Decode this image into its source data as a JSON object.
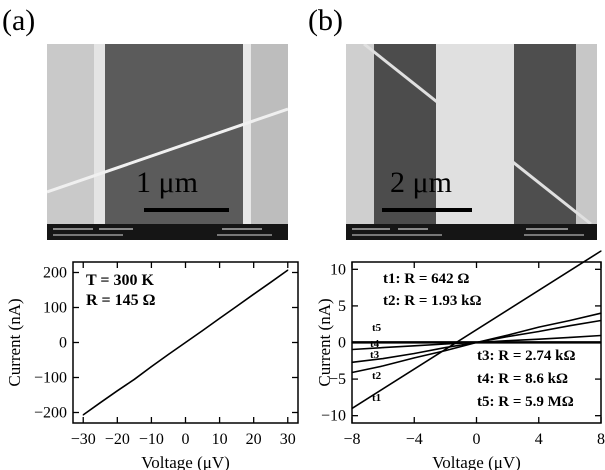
{
  "panels": [
    {
      "label": "(a)",
      "scale_bar": "1 μm"
    },
    {
      "label": "(b)",
      "scale_bar": "2 μm"
    }
  ],
  "chart_data": [
    {
      "type": "line",
      "xlabel": "Voltage (μV)",
      "ylabel": "Current (nA)",
      "xlim": [
        -33,
        33
      ],
      "ylim": [
        -230,
        230
      ],
      "xticks": [
        -30,
        -20,
        -10,
        0,
        10,
        20,
        30
      ],
      "yticks": [
        -200,
        -100,
        0,
        100,
        200
      ],
      "annotations": [
        "T = 300 K",
        "R = 145 Ω"
      ],
      "series": [
        {
          "x": [
            -30,
            -25,
            -20,
            -15,
            -10,
            -5,
            0,
            5,
            10,
            15,
            20,
            25,
            30
          ],
          "y": [
            -207,
            -172,
            -138,
            -105,
            -69,
            -34,
            0,
            34,
            69,
            103,
            138,
            172,
            207
          ]
        }
      ]
    },
    {
      "type": "line",
      "xlabel": "Voltage (μV)",
      "ylabel": "Current (nA)",
      "xlim": [
        -8,
        8
      ],
      "ylim": [
        -11,
        11
      ],
      "xticks": [
        -8,
        -4,
        0,
        4,
        8
      ],
      "yticks": [
        -10,
        -5,
        0,
        5,
        10
      ],
      "annotations": [
        "t1: R = 642 Ω",
        "t2: R = 1.93 kΩ",
        "t3: R = 2.74 kΩ",
        "t4: R = 8.6 kΩ",
        "t5: R = 5.9 MΩ"
      ],
      "curve_labels": [
        "t1",
        "t2",
        "t3",
        "t4",
        "t5"
      ],
      "series": [
        {
          "name": "t1",
          "x": [
            -8,
            8
          ],
          "y": [
            -9,
            12.5
          ]
        },
        {
          "name": "t2",
          "x": [
            -8,
            -6,
            -4,
            -2,
            0,
            2,
            4,
            6,
            8
          ],
          "y": [
            -4.1,
            -3.2,
            -2.1,
            -1.1,
            0,
            1.0,
            2.1,
            3.0,
            4.0
          ]
        },
        {
          "name": "t3",
          "x": [
            -8,
            -6,
            -4,
            -2,
            0,
            2,
            4,
            6,
            8
          ],
          "y": [
            -2.7,
            -2.2,
            -1.5,
            -0.7,
            0,
            0.8,
            1.5,
            2.3,
            3.0
          ]
        },
        {
          "name": "t4",
          "x": [
            -8,
            -6,
            -4,
            -2,
            0,
            2,
            4,
            6,
            8
          ],
          "y": [
            -0.95,
            -0.7,
            -0.45,
            -0.2,
            0,
            0.25,
            0.45,
            0.7,
            0.95
          ]
        },
        {
          "name": "t5",
          "x": [
            -8,
            8
          ],
          "y": [
            0.02,
            0.02
          ]
        }
      ]
    }
  ]
}
